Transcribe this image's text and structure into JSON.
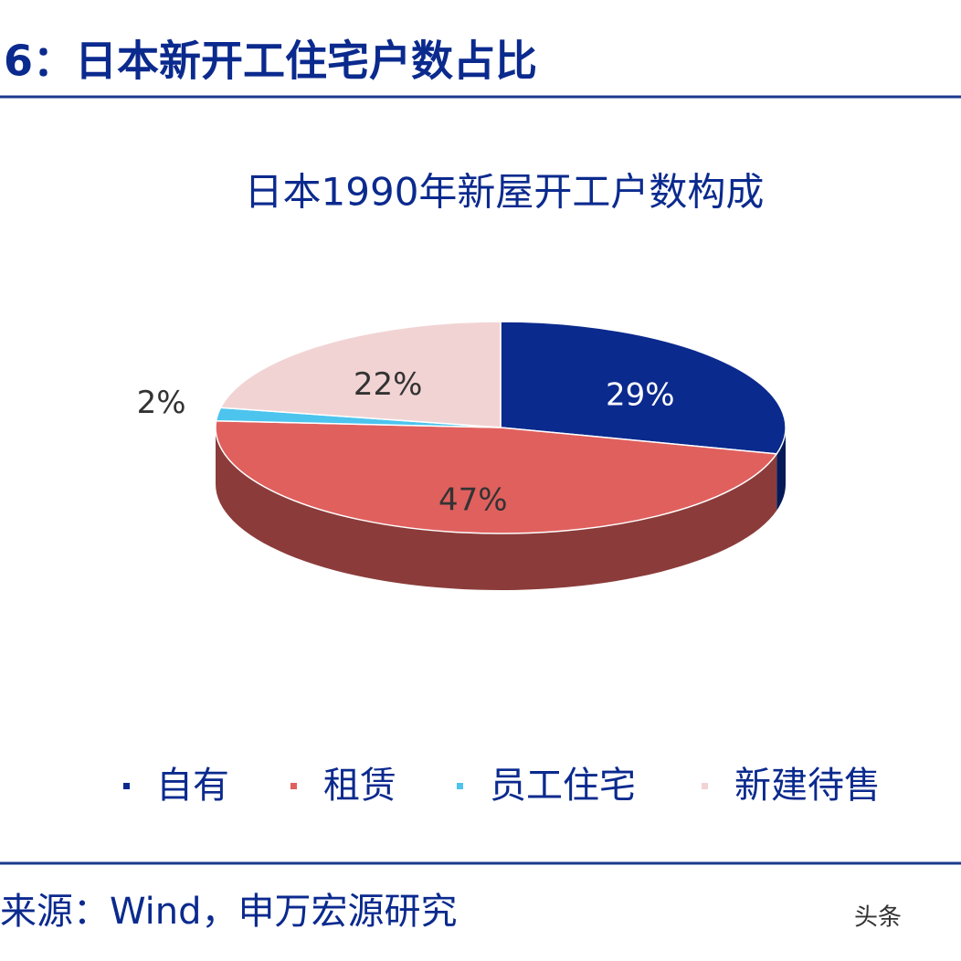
{
  "header": {
    "title": "6：日本新开工住宅户数占比"
  },
  "chart_data": {
    "type": "pie",
    "title": "日本1990年新屋开工户数构成",
    "categories": [
      "自有",
      "租赁",
      "员工住宅",
      "新建待售"
    ],
    "values": [
      29,
      47,
      2,
      22
    ],
    "value_labels": [
      "29%",
      "47%",
      "2%",
      "22%"
    ],
    "colors": [
      "#0b2a8e",
      "#e0605e",
      "#4cc4ee",
      "#f2d3d3"
    ],
    "legend": "bottom"
  },
  "footer": {
    "source": "来源：Wind，申万宏源研究",
    "watermark": "头条"
  }
}
